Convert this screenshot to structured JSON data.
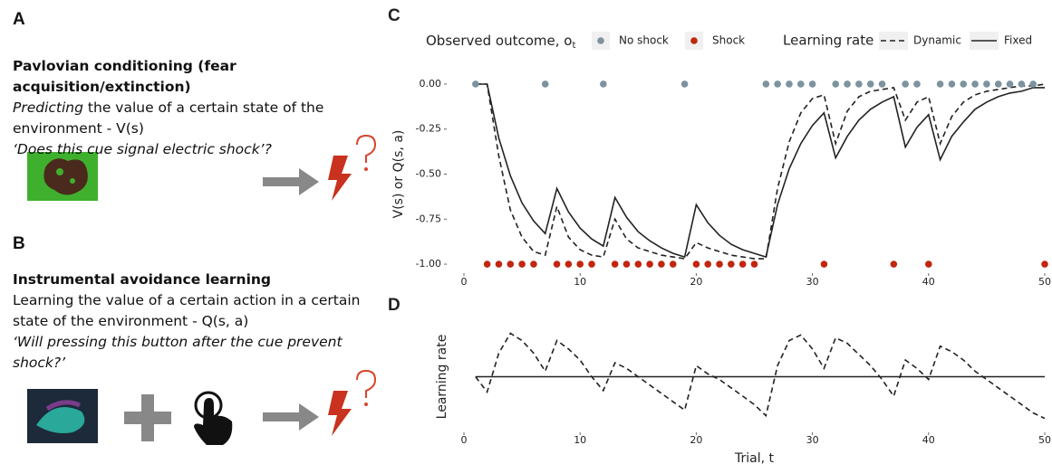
{
  "panels": {
    "a": {
      "label": "A",
      "title": "Pavlovian conditioning (fear acquisition/extinction)",
      "emphasis": "Predicting",
      "description": "the value of a certain state of the environment - V(s)",
      "question": "‘Does this cue signal  electric shock’?"
    },
    "b": {
      "label": "B",
      "title": "Instrumental avoidance learning",
      "description": "Learning the value of a certain action in a certain state of the environment - Q(s, a)",
      "question": "‘Will pressing this button after the cue prevent shock?’"
    }
  },
  "chart_data": [
    {
      "type": "line",
      "label": "C",
      "y_label": "V(s) or Q(s, a)",
      "xlim": [
        0,
        50
      ],
      "xticks": [
        0,
        10,
        20,
        30,
        40,
        50
      ],
      "ylim": [
        -1.05,
        0.05
      ],
      "yticks": [
        {
          "value": -1,
          "label": "-1.00"
        },
        {
          "value": -0.75,
          "label": "-0.75"
        },
        {
          "value": -0.5,
          "label": "-0.50"
        },
        {
          "value": -0.25,
          "label": "-0.25"
        },
        {
          "value": 0,
          "label": "0.00"
        }
      ],
      "outcomes": {
        "title": "Observed outcome, o",
        "title_sub": "t",
        "series": [
          {
            "name": "No shock",
            "color": "#7d939e",
            "y": 0,
            "x": [
              1,
              7,
              12,
              19,
              26,
              27,
              28,
              29,
              30,
              32,
              33,
              34,
              35,
              36,
              38,
              39,
              41,
              42,
              43,
              44,
              45,
              46,
              47,
              48,
              49
            ]
          },
          {
            "name": "Shock",
            "color": "#c1260f",
            "y": -1,
            "x": [
              2,
              3,
              4,
              5,
              6,
              8,
              9,
              10,
              11,
              13,
              14,
              15,
              16,
              17,
              18,
              20,
              21,
              22,
              23,
              24,
              25,
              31,
              37,
              40,
              50
            ]
          }
        ]
      },
      "legend_title": "Learning rate",
      "x": [
        1,
        2,
        3,
        4,
        5,
        6,
        7,
        8,
        9,
        10,
        11,
        12,
        13,
        14,
        15,
        16,
        17,
        18,
        19,
        20,
        21,
        22,
        23,
        24,
        25,
        26,
        27,
        28,
        29,
        30,
        31,
        32,
        33,
        34,
        35,
        36,
        37,
        38,
        39,
        40,
        41,
        42,
        43,
        44,
        45,
        46,
        47,
        48,
        49,
        50
      ],
      "series": [
        {
          "name": "Dynamic",
          "dashed": true,
          "color": "#222222",
          "values": [
            0,
            0,
            -0.4,
            -0.7,
            -0.85,
            -0.93,
            -0.95,
            -0.68,
            -0.85,
            -0.92,
            -0.95,
            -0.96,
            -0.75,
            -0.86,
            -0.91,
            -0.93,
            -0.95,
            -0.96,
            -0.97,
            -0.88,
            -0.91,
            -0.93,
            -0.95,
            -0.96,
            -0.97,
            -0.97,
            -0.58,
            -0.32,
            -0.16,
            -0.08,
            -0.06,
            -0.33,
            -0.15,
            -0.07,
            -0.04,
            -0.03,
            -0.02,
            -0.2,
            -0.1,
            -0.07,
            -0.33,
            -0.18,
            -0.1,
            -0.06,
            -0.04,
            -0.03,
            -0.02,
            -0.01,
            -0.01,
            0
          ]
        },
        {
          "name": "Fixed",
          "dashed": false,
          "color": "#222222",
          "values": [
            0,
            0,
            -0.3,
            -0.51,
            -0.66,
            -0.76,
            -0.83,
            -0.58,
            -0.71,
            -0.8,
            -0.86,
            -0.9,
            -0.63,
            -0.74,
            -0.82,
            -0.87,
            -0.91,
            -0.94,
            -0.96,
            -0.67,
            -0.77,
            -0.84,
            -0.89,
            -0.92,
            -0.94,
            -0.96,
            -0.67,
            -0.47,
            -0.33,
            -0.23,
            -0.16,
            -0.41,
            -0.29,
            -0.2,
            -0.14,
            -0.1,
            -0.07,
            -0.35,
            -0.24,
            -0.17,
            -0.42,
            -0.29,
            -0.21,
            -0.14,
            -0.1,
            -0.07,
            -0.05,
            -0.04,
            -0.02,
            -0.02
          ]
        }
      ]
    },
    {
      "type": "line",
      "label": "D",
      "y_label": "Learning rate",
      "x_label": "Trial, t",
      "xlim": [
        0,
        50
      ],
      "xticks": [
        0,
        10,
        20,
        30,
        40,
        50
      ],
      "ylim": [
        0.1,
        0.5
      ],
      "x": [
        1,
        2,
        3,
        4,
        5,
        6,
        7,
        8,
        9,
        10,
        11,
        12,
        13,
        14,
        15,
        16,
        17,
        18,
        19,
        20,
        21,
        22,
        23,
        24,
        25,
        26,
        27,
        28,
        29,
        30,
        31,
        32,
        33,
        34,
        35,
        36,
        37,
        38,
        39,
        40,
        41,
        42,
        43,
        44,
        45,
        46,
        47,
        48,
        49,
        50
      ],
      "series": [
        {
          "dashed": true,
          "color": "#222222",
          "values": [
            0.3,
            0.245,
            0.385,
            0.456,
            0.43,
            0.385,
            0.32,
            0.43,
            0.4,
            0.36,
            0.3,
            0.25,
            0.35,
            0.33,
            0.3,
            0.27,
            0.24,
            0.21,
            0.18,
            0.34,
            0.31,
            0.29,
            0.26,
            0.23,
            0.2,
            0.16,
            0.34,
            0.43,
            0.45,
            0.4,
            0.33,
            0.44,
            0.42,
            0.38,
            0.34,
            0.29,
            0.23,
            0.36,
            0.33,
            0.29,
            0.41,
            0.39,
            0.36,
            0.32,
            0.29,
            0.26,
            0.23,
            0.2,
            0.17,
            0.15
          ]
        },
        {
          "dashed": false,
          "color": "#222222",
          "values": [
            0.3,
            0.3,
            0.3,
            0.3,
            0.3,
            0.3,
            0.3,
            0.3,
            0.3,
            0.3,
            0.3,
            0.3,
            0.3,
            0.3,
            0.3,
            0.3,
            0.3,
            0.3,
            0.3,
            0.3,
            0.3,
            0.3,
            0.3,
            0.3,
            0.3,
            0.3,
            0.3,
            0.3,
            0.3,
            0.3,
            0.3,
            0.3,
            0.3,
            0.3,
            0.3,
            0.3,
            0.3,
            0.3,
            0.3,
            0.3,
            0.3,
            0.3,
            0.3,
            0.3,
            0.3,
            0.3,
            0.3,
            0.3,
            0.3,
            0.3
          ]
        }
      ]
    }
  ]
}
